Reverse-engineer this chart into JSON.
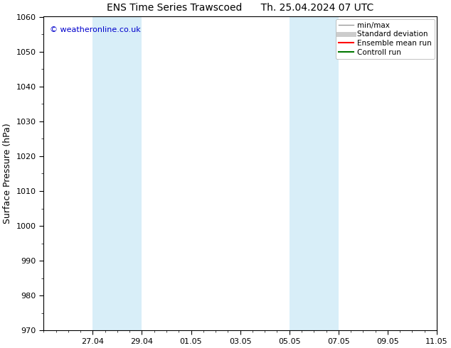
{
  "title_left": "ENS Time Series Trawscoed",
  "title_right": "Th. 25.04.2024 07 UTC",
  "ylabel": "Surface Pressure (hPa)",
  "ylim": [
    970,
    1060
  ],
  "yticks": [
    970,
    980,
    990,
    1000,
    1010,
    1020,
    1030,
    1040,
    1050,
    1060
  ],
  "background_color": "#ffffff",
  "plot_bg_color": "#ffffff",
  "shaded_bands": [
    {
      "x_start": 2.0,
      "x_end": 4.0,
      "color": "#d8eef8"
    },
    {
      "x_start": 10.0,
      "x_end": 12.0,
      "color": "#d8eef8"
    }
  ],
  "xlim": [
    0,
    16
  ],
  "xtick_positions": [
    2,
    4,
    6,
    8,
    10,
    12,
    14,
    16
  ],
  "xtick_labels": [
    "27.04",
    "29.04",
    "01.05",
    "03.05",
    "05.05",
    "07.05",
    "09.05",
    "11.05"
  ],
  "watermark_text": "© weatheronline.co.uk",
  "watermark_color": "#0000cc",
  "legend_items": [
    {
      "label": "min/max",
      "color": "#999999",
      "lw": 1.0,
      "ls": "-"
    },
    {
      "label": "Standard deviation",
      "color": "#cccccc",
      "lw": 5,
      "ls": "-"
    },
    {
      "label": "Ensemble mean run",
      "color": "#ff0000",
      "lw": 1.5,
      "ls": "-"
    },
    {
      "label": "Controll run",
      "color": "#007700",
      "lw": 1.5,
      "ls": "-"
    }
  ],
  "title_fontsize": 10,
  "axis_label_fontsize": 9,
  "tick_fontsize": 8,
  "watermark_fontsize": 8,
  "legend_fontsize": 7.5
}
